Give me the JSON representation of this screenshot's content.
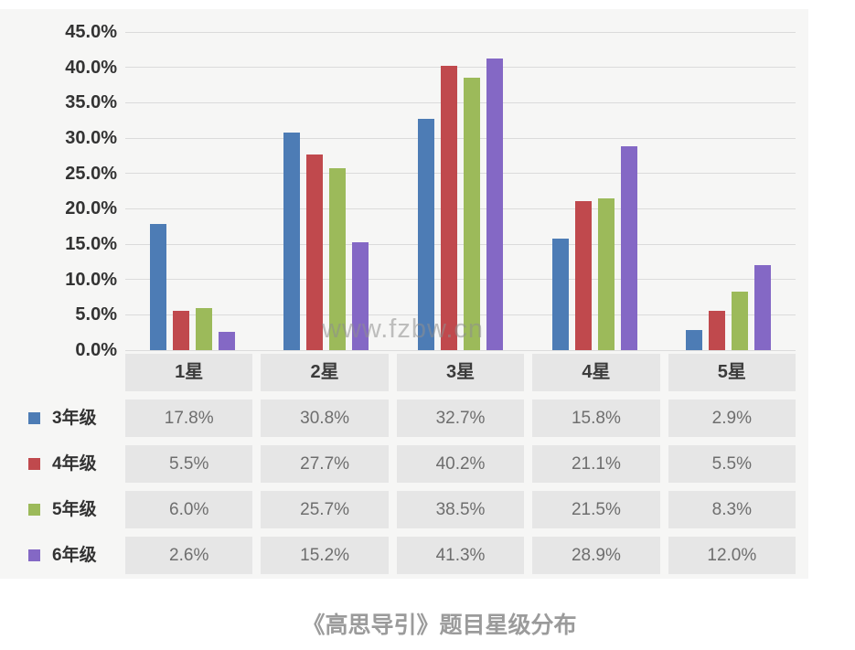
{
  "watermark": "www.fzbw.cn",
  "caption": "《高思导引》题目星级分布",
  "chart_data": {
    "type": "bar",
    "title": "《高思导引》题目星级分布",
    "categories": [
      "1星",
      "2星",
      "3星",
      "4星",
      "5星"
    ],
    "series": [
      {
        "name": "3年级",
        "color": "#4d7cb5",
        "values": [
          17.8,
          30.8,
          32.7,
          15.8,
          2.9
        ]
      },
      {
        "name": "4年级",
        "color": "#c0494d",
        "values": [
          5.5,
          27.7,
          40.2,
          21.1,
          5.5
        ]
      },
      {
        "name": "5年级",
        "color": "#9cba5a",
        "values": [
          6.0,
          25.7,
          38.5,
          21.5,
          8.3
        ]
      },
      {
        "name": "6年级",
        "color": "#8468c5",
        "values": [
          2.6,
          15.2,
          41.3,
          28.9,
          12.0
        ]
      }
    ],
    "xlabel": "",
    "ylabel": "",
    "ylim": [
      0,
      45
    ],
    "ytick_step": 5,
    "ytick_labels": [
      "45.0%",
      "40.0%",
      "35.0%",
      "30.0%",
      "25.0%",
      "20.0%",
      "15.0%",
      "10.0%",
      "5.0%",
      "0.0%"
    ],
    "grid": true,
    "legend_position": "left-of-table",
    "value_format": "one_decimal_percent"
  },
  "table": {
    "header": [
      "1星",
      "2星",
      "3星",
      "4星",
      "5星"
    ],
    "rows": [
      {
        "label": "3年级",
        "swatch_color": "#4d7cb5",
        "cells": [
          "17.8%",
          "30.8%",
          "32.7%",
          "15.8%",
          "2.9%"
        ]
      },
      {
        "label": "4年级",
        "swatch_color": "#c0494d",
        "cells": [
          "5.5%",
          "27.7%",
          "40.2%",
          "21.1%",
          "5.5%"
        ]
      },
      {
        "label": "5年级",
        "swatch_color": "#9cba5a",
        "cells": [
          "6.0%",
          "25.7%",
          "38.5%",
          "21.5%",
          "8.3%"
        ]
      },
      {
        "label": "6年级",
        "swatch_color": "#8468c5",
        "cells": [
          "2.6%",
          "15.2%",
          "41.3%",
          "28.9%",
          "12.0%"
        ]
      }
    ]
  },
  "colors": {
    "panel_bg": "#f6f6f5",
    "cell_bg": "#e6e6e6",
    "gridline": "#dbdbdb",
    "caption_text": "#9b9b9b",
    "value_text": "#6e6e6e"
  }
}
